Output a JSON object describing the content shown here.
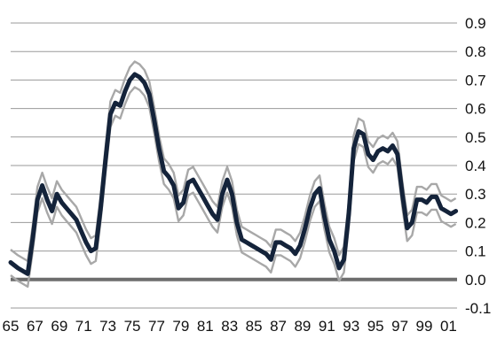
{
  "chart_data": {
    "type": "line",
    "title": "",
    "xlabel": "",
    "ylabel": "",
    "xlim": [
      1965,
      2001.7
    ],
    "ylim": [
      -0.1,
      0.9
    ],
    "grid": true,
    "legend": "none",
    "x_ticks": [
      {
        "value": 1965,
        "label": "65"
      },
      {
        "value": 1967,
        "label": "67"
      },
      {
        "value": 1969,
        "label": "69"
      },
      {
        "value": 1971,
        "label": "71"
      },
      {
        "value": 1973,
        "label": "73"
      },
      {
        "value": 1975,
        "label": "75"
      },
      {
        "value": 1977,
        "label": "77"
      },
      {
        "value": 1979,
        "label": "79"
      },
      {
        "value": 1981,
        "label": "81"
      },
      {
        "value": 1983,
        "label": "83"
      },
      {
        "value": 1985,
        "label": "85"
      },
      {
        "value": 1987,
        "label": "87"
      },
      {
        "value": 1989,
        "label": "89"
      },
      {
        "value": 1991,
        "label": "91"
      },
      {
        "value": 1993,
        "label": "93"
      },
      {
        "value": 1995,
        "label": "95"
      },
      {
        "value": 1997,
        "label": "97"
      },
      {
        "value": 1999,
        "label": "99"
      },
      {
        "value": 2001,
        "label": "01"
      }
    ],
    "y_ticks": [
      {
        "value": 0.9,
        "label": "0.9"
      },
      {
        "value": 0.8,
        "label": "0.8"
      },
      {
        "value": 0.7,
        "label": "0.7"
      },
      {
        "value": 0.6,
        "label": "0.6"
      },
      {
        "value": 0.5,
        "label": "0.5"
      },
      {
        "value": 0.4,
        "label": "0.4"
      },
      {
        "value": 0.3,
        "label": "0.3"
      },
      {
        "value": 0.2,
        "label": "0.2"
      },
      {
        "value": 0.1,
        "label": "0.1"
      },
      {
        "value": 0.0,
        "label": "0.0"
      },
      {
        "value": -0.1,
        "label": "-0.1"
      }
    ],
    "band_offset": 0.045,
    "colors": {
      "main": "#14233a",
      "band": "#a8a8a8",
      "grid": "#9a9a9a",
      "zero": "#6d6d6d",
      "text": "#111111"
    },
    "x": [
      1965.0,
      1965.6,
      1966.0,
      1966.4,
      1966.8,
      1967.2,
      1967.6,
      1968.0,
      1968.4,
      1968.8,
      1969.2,
      1969.6,
      1970.0,
      1970.4,
      1970.8,
      1971.2,
      1971.6,
      1972.0,
      1972.4,
      1972.8,
      1973.2,
      1973.6,
      1974.0,
      1974.4,
      1974.8,
      1975.2,
      1975.6,
      1976.0,
      1976.4,
      1976.8,
      1977.2,
      1977.6,
      1978.0,
      1978.4,
      1978.8,
      1979.2,
      1979.6,
      1980.0,
      1980.4,
      1980.8,
      1981.2,
      1981.6,
      1982.0,
      1982.4,
      1982.8,
      1983.2,
      1983.6,
      1984.0,
      1984.4,
      1984.8,
      1985.2,
      1985.6,
      1986.0,
      1986.4,
      1986.8,
      1987.2,
      1987.6,
      1988.0,
      1988.4,
      1988.8,
      1989.2,
      1989.6,
      1990.0,
      1990.4,
      1990.8,
      1991.2,
      1991.6,
      1992.0,
      1992.4,
      1992.8,
      1993.2,
      1993.6,
      1994.0,
      1994.4,
      1994.8,
      1995.2,
      1995.6,
      1996.0,
      1996.4,
      1996.8,
      1997.2,
      1997.6,
      1998.0,
      1998.4,
      1998.8,
      1999.2,
      1999.6,
      2000.0,
      2000.4,
      2000.8,
      2001.2,
      2001.6
    ],
    "series": [
      {
        "values": [
          0.06,
          0.04,
          0.03,
          0.02,
          0.14,
          0.28,
          0.33,
          0.28,
          0.24,
          0.3,
          0.27,
          0.25,
          0.23,
          0.21,
          0.17,
          0.13,
          0.1,
          0.11,
          0.25,
          0.42,
          0.58,
          0.62,
          0.61,
          0.66,
          0.7,
          0.72,
          0.71,
          0.69,
          0.65,
          0.56,
          0.46,
          0.38,
          0.36,
          0.33,
          0.25,
          0.27,
          0.34,
          0.35,
          0.32,
          0.29,
          0.26,
          0.23,
          0.21,
          0.3,
          0.35,
          0.3,
          0.2,
          0.14,
          0.13,
          0.12,
          0.11,
          0.1,
          0.09,
          0.07,
          0.13,
          0.13,
          0.12,
          0.11,
          0.09,
          0.12,
          0.18,
          0.25,
          0.3,
          0.32,
          0.22,
          0.14,
          0.1,
          0.04,
          0.07,
          0.23,
          0.46,
          0.52,
          0.51,
          0.44,
          0.42,
          0.45,
          0.46,
          0.45,
          0.47,
          0.44,
          0.3,
          0.18,
          0.2,
          0.28,
          0.28,
          0.27,
          0.29,
          0.29,
          0.25,
          0.24,
          0.23,
          0.24
        ]
      }
    ]
  }
}
